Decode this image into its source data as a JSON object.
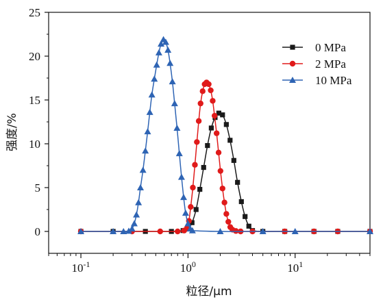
{
  "chart_data": {
    "type": "line",
    "xlabel": "粒径/μm",
    "ylabel": "强度/%",
    "xscale": "log",
    "xlim": [
      0.05,
      50
    ],
    "ylim": [
      -2.5,
      25
    ],
    "yticks": [
      0,
      5,
      10,
      15,
      20,
      25
    ],
    "ytick_labels": [
      "0",
      "5",
      "10",
      "15",
      "20",
      "25"
    ],
    "xticks": [
      {
        "value": 0.1,
        "base": "10",
        "exp": "-1"
      },
      {
        "value": 1,
        "base": "10",
        "exp": "0"
      },
      {
        "value": 10,
        "base": "10",
        "exp": "1"
      }
    ],
    "grid": false,
    "legend_position": "top-right",
    "series": [
      {
        "name": "0 MPa",
        "color": "#1a1a1a",
        "marker": "square",
        "x": [
          0.1,
          0.2,
          0.4,
          0.7,
          0.9,
          1.0,
          1.09,
          1.19,
          1.29,
          1.4,
          1.52,
          1.65,
          1.79,
          1.94,
          2.1,
          2.28,
          2.47,
          2.68,
          2.9,
          3.15,
          3.41,
          3.7,
          4.0,
          5.0,
          8.0,
          15.0,
          25.0,
          50.0
        ],
        "y": [
          0,
          0,
          0,
          0,
          0.1,
          0.3,
          1.0,
          2.5,
          4.8,
          7.3,
          9.8,
          11.8,
          13.0,
          13.5,
          13.3,
          12.2,
          10.4,
          8.1,
          5.6,
          3.4,
          1.7,
          0.6,
          0.1,
          0,
          0,
          0,
          0,
          0
        ]
      },
      {
        "name": "2 MPa",
        "color": "#e01a1a",
        "marker": "circle",
        "x": [
          0.1,
          0.3,
          0.55,
          0.8,
          0.92,
          0.98,
          1.02,
          1.06,
          1.11,
          1.16,
          1.21,
          1.26,
          1.31,
          1.37,
          1.43,
          1.49,
          1.56,
          1.63,
          1.7,
          1.77,
          1.85,
          1.93,
          2.01,
          2.1,
          2.19,
          2.28,
          2.38,
          2.48,
          2.6,
          2.8,
          3.1,
          4.0,
          8.0,
          15.0,
          25.0,
          50.0
        ],
        "y": [
          0,
          0,
          0,
          0,
          0.1,
          0.4,
          1.2,
          2.8,
          5.0,
          7.6,
          10.2,
          12.6,
          14.6,
          16.0,
          16.8,
          17.0,
          16.8,
          16.1,
          14.9,
          13.2,
          11.2,
          9.0,
          6.9,
          4.9,
          3.3,
          2.0,
          1.1,
          0.5,
          0.2,
          0.05,
          0,
          0,
          0,
          0,
          0,
          0
        ]
      },
      {
        "name": "10 MPa",
        "color": "#2e64b4",
        "marker": "triangle",
        "x": [
          0.1,
          0.2,
          0.25,
          0.28,
          0.3,
          0.315,
          0.33,
          0.345,
          0.36,
          0.38,
          0.4,
          0.42,
          0.44,
          0.46,
          0.485,
          0.51,
          0.535,
          0.56,
          0.59,
          0.62,
          0.65,
          0.68,
          0.715,
          0.75,
          0.79,
          0.83,
          0.87,
          0.91,
          0.95,
          1.0,
          1.05,
          1.1,
          2.0,
          5.0,
          10.0,
          50.0
        ],
        "y": [
          0,
          0,
          0,
          0.05,
          0.3,
          0.9,
          1.9,
          3.3,
          5.0,
          7.0,
          9.2,
          11.4,
          13.6,
          15.6,
          17.4,
          19.0,
          20.4,
          21.4,
          21.9,
          21.6,
          20.7,
          19.2,
          17.1,
          14.6,
          11.8,
          8.9,
          6.2,
          3.9,
          2.1,
          0.9,
          0.3,
          0.1,
          0,
          0,
          0,
          0
        ]
      }
    ]
  }
}
